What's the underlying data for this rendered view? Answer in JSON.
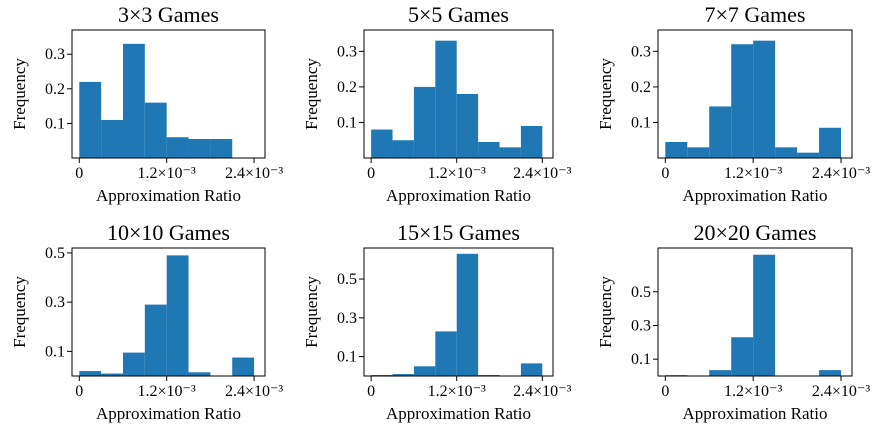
{
  "figure": {
    "xlabel": "Approximation Ratio",
    "ylabel": "Frequency",
    "bar_color": "#1f77b4"
  },
  "chart_data": [
    {
      "type": "bar",
      "title": "3×3 Games",
      "xlabel": "Approximation Ratio",
      "ylabel": "Frequency",
      "bin_edges": [
        0,
        0.3,
        0.6,
        0.9,
        1.2,
        1.5,
        1.8,
        2.1
      ],
      "values": [
        0.22,
        0.11,
        0.33,
        0.16,
        0.06,
        0.055,
        0.055
      ],
      "xlim": [
        -0.1,
        2.55
      ],
      "ylim": [
        0,
        0.37
      ],
      "xticks": [
        0,
        1.2,
        2.4
      ],
      "xtick_labels": [
        "0",
        "1.2×10⁻³",
        "2.4×10⁻³"
      ],
      "yticks": [
        0.1,
        0.2,
        0.3
      ],
      "ytick_labels": [
        "0.1",
        "0.2",
        "0.3"
      ]
    },
    {
      "type": "bar",
      "title": "5×5 Games",
      "xlabel": "Approximation Ratio",
      "ylabel": "Frequency",
      "bin_edges": [
        0,
        0.3,
        0.6,
        0.9,
        1.2,
        1.5,
        1.8,
        2.1,
        2.4
      ],
      "values": [
        0.08,
        0.05,
        0.2,
        0.33,
        0.18,
        0.045,
        0.03,
        0.09
      ],
      "xlim": [
        -0.1,
        2.55
      ],
      "ylim": [
        0,
        0.36
      ],
      "xticks": [
        0,
        1.2,
        2.4
      ],
      "xtick_labels": [
        "0",
        "1.2×10⁻³",
        "2.4×10⁻³"
      ],
      "yticks": [
        0.1,
        0.2,
        0.3
      ],
      "ytick_labels": [
        "0.1",
        "0.2",
        "0.3"
      ]
    },
    {
      "type": "bar",
      "title": "7×7 Games",
      "xlabel": "Approximation Ratio",
      "ylabel": "Frequency",
      "bin_edges": [
        0,
        0.3,
        0.6,
        0.9,
        1.2,
        1.5,
        1.8,
        2.1,
        2.4
      ],
      "values": [
        0.045,
        0.03,
        0.145,
        0.32,
        0.33,
        0.03,
        0.015,
        0.085
      ],
      "xlim": [
        -0.1,
        2.55
      ],
      "ylim": [
        0,
        0.36
      ],
      "xticks": [
        0,
        1.2,
        2.4
      ],
      "xtick_labels": [
        "0",
        "1.2×10⁻³",
        "2.4×10⁻³"
      ],
      "yticks": [
        0.1,
        0.2,
        0.3
      ],
      "ytick_labels": [
        "0.1",
        "0.2",
        "0.3"
      ]
    },
    {
      "type": "bar",
      "title": "10×10 Games",
      "xlabel": "Approximation Ratio",
      "ylabel": "Frequency",
      "bin_edges": [
        0,
        0.3,
        0.6,
        0.9,
        1.2,
        1.5,
        1.8,
        2.1,
        2.4
      ],
      "values": [
        0.02,
        0.01,
        0.095,
        0.29,
        0.49,
        0.015,
        0,
        0.075
      ],
      "xlim": [
        -0.1,
        2.55
      ],
      "ylim": [
        0,
        0.52
      ],
      "xticks": [
        0,
        1.2,
        2.4
      ],
      "xtick_labels": [
        "0",
        "1.2×10⁻³",
        "2.4×10⁻³"
      ],
      "yticks": [
        0.1,
        0.3,
        0.5
      ],
      "ytick_labels": [
        "0.1",
        "0.3",
        "0.5"
      ]
    },
    {
      "type": "bar",
      "title": "15×15 Games",
      "xlabel": "Approximation Ratio",
      "ylabel": "Frequency",
      "bin_edges": [
        0,
        0.3,
        0.6,
        0.9,
        1.2,
        1.5,
        1.8,
        2.1,
        2.4
      ],
      "values": [
        0.005,
        0.01,
        0.05,
        0.23,
        0.63,
        0.005,
        0,
        0.065
      ],
      "xlim": [
        -0.1,
        2.55
      ],
      "ylim": [
        0,
        0.66
      ],
      "xticks": [
        0,
        1.2,
        2.4
      ],
      "xtick_labels": [
        "0",
        "1.2×10⁻³",
        "2.4×10⁻³"
      ],
      "yticks": [
        0.1,
        0.3,
        0.5
      ],
      "ytick_labels": [
        "0.1",
        "0.3",
        "0.5"
      ]
    },
    {
      "type": "bar",
      "title": "20×20 Games",
      "xlabel": "Approximation Ratio",
      "ylabel": "Frequency",
      "bin_edges": [
        0,
        0.3,
        0.6,
        0.9,
        1.2,
        1.5,
        1.8,
        2.1,
        2.4
      ],
      "values": [
        0.005,
        0,
        0.035,
        0.23,
        0.72,
        0,
        0,
        0.035
      ],
      "xlim": [
        -0.1,
        2.55
      ],
      "ylim": [
        0,
        0.76
      ],
      "xticks": [
        0,
        1.2,
        2.4
      ],
      "xtick_labels": [
        "0",
        "1.2×10⁻³",
        "2.4×10⁻³"
      ],
      "yticks": [
        0.1,
        0.3,
        0.5
      ],
      "ytick_labels": [
        "0.1",
        "0.3",
        "0.5"
      ]
    }
  ]
}
